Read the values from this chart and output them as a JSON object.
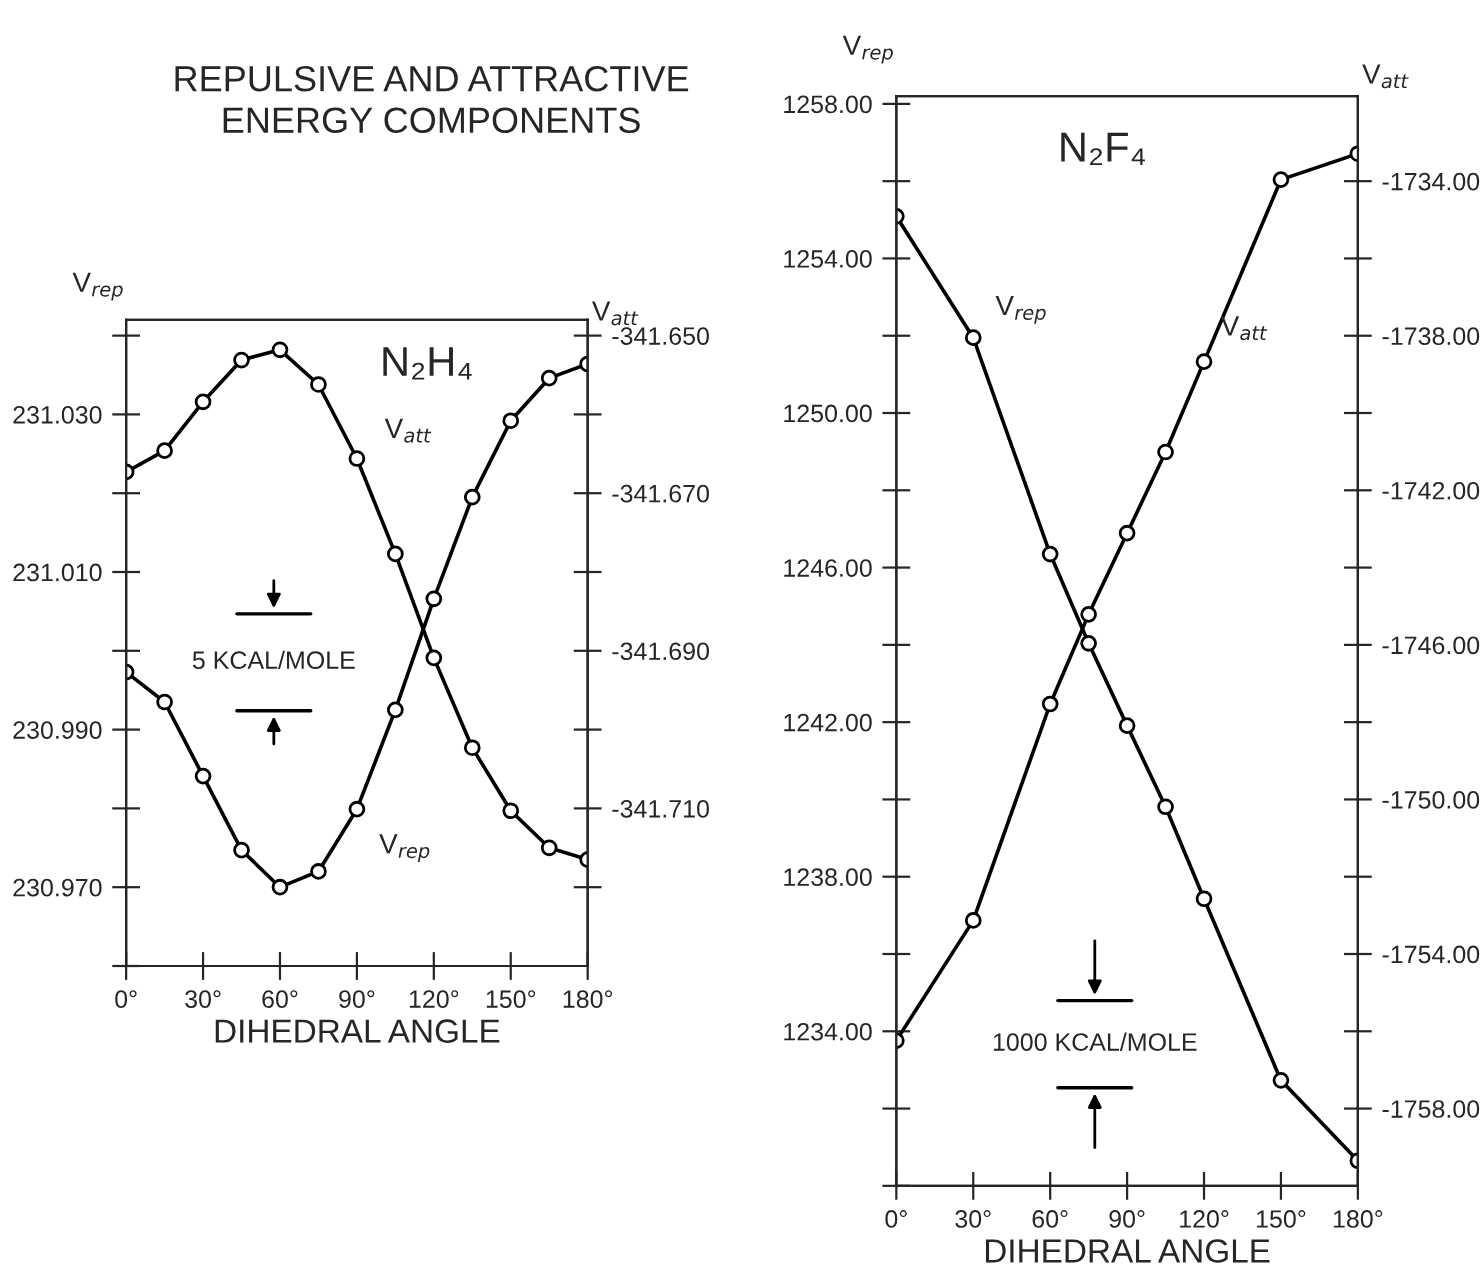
{
  "chart_data": [
    {
      "type": "line",
      "title": "REPULSIVE AND ATTRACTIVE\nENERGY COMPONENTS",
      "xlabel": "DIHEDRAL ANGLE",
      "ylabel": "V$_{rep}$",
      "y2label": "V$_{att}$",
      "annotations": [
        "N₂H₄",
        "5 KCAL/MOLE"
      ],
      "x": [
        0,
        15,
        30,
        45,
        60,
        75,
        90,
        105,
        120,
        135,
        150,
        165,
        180
      ],
      "xlim": [
        0,
        180
      ],
      "xticks": [
        {
          "value": 0,
          "label": "0°"
        },
        {
          "value": 30,
          "label": "30°"
        },
        {
          "value": 60,
          "label": "60°"
        },
        {
          "value": 90,
          "label": "90°"
        },
        {
          "value": 120,
          "label": "120°"
        },
        {
          "value": 150,
          "label": "150°"
        },
        {
          "value": 180,
          "label": "180°"
        }
      ],
      "ylim": [
        230.96,
        231.042
      ],
      "yticks": [
        {
          "value": 230.96,
          "label": null
        },
        {
          "value": 230.97,
          "label": "230.970"
        },
        {
          "value": 230.98,
          "label": null
        },
        {
          "value": 230.99,
          "label": "230.990"
        },
        {
          "value": 231.0,
          "label": null
        },
        {
          "value": 231.01,
          "label": "231.010"
        },
        {
          "value": 231.02,
          "label": null
        },
        {
          "value": 231.03,
          "label": "231.030"
        },
        {
          "value": 231.04,
          "label": null
        }
      ],
      "y2lim": [
        -341.73,
        -341.648
      ],
      "y2ticks": [
        {
          "value": -341.65,
          "label": "-341.650"
        },
        {
          "value": -341.66,
          "label": null
        },
        {
          "value": -341.67,
          "label": "-341.670"
        },
        {
          "value": -341.68,
          "label": null
        },
        {
          "value": -341.69,
          "label": "-341.690"
        },
        {
          "value": -341.7,
          "label": null
        },
        {
          "value": -341.71,
          "label": "-341.710"
        },
        {
          "value": -341.72,
          "label": null
        }
      ],
      "marker": "circle",
      "line_style": "solid",
      "grid": false,
      "legend": false,
      "series": [
        {
          "name": "V$_{rep}$",
          "color": "#000000",
          "values": [
            230.9973,
            230.9935,
            230.9841,
            230.9747,
            230.97,
            230.972,
            230.9799,
            230.9925,
            231.0066,
            231.0195,
            231.0292,
            231.0346,
            231.0364
          ]
        },
        {
          "name": "V$_{att}$",
          "color": "#000000",
          "axis": "y2",
          "values": [
            -341.6673,
            -341.6646,
            -341.6584,
            -341.6531,
            -341.6518,
            -341.6562,
            -341.6656,
            -341.6777,
            -341.6909,
            -341.7023,
            -341.7103,
            -341.715,
            -341.7165
          ]
        }
      ]
    },
    {
      "type": "line",
      "xlabel": "DIHEDRAL ANGLE",
      "ylabel": "V$_{rep}$",
      "y2label": "V$_{att}$",
      "annotations": [
        "N₂F₄",
        "1000 KCAL/MOLE"
      ],
      "x": [
        0,
        30,
        60,
        75,
        90,
        105,
        120,
        150,
        180
      ],
      "xlim": [
        0,
        180
      ],
      "xticks": [
        {
          "value": 0,
          "label": "0°"
        },
        {
          "value": 30,
          "label": "30°"
        },
        {
          "value": 60,
          "label": "60°"
        },
        {
          "value": 90,
          "label": "90°"
        },
        {
          "value": 120,
          "label": "120°"
        },
        {
          "value": 150,
          "label": "150°"
        },
        {
          "value": 180,
          "label": "180°"
        }
      ],
      "ylim": [
        1230,
        1258.2
      ],
      "yticks": [
        {
          "value": 1230,
          "label": null
        },
        {
          "value": 1232,
          "label": null
        },
        {
          "value": 1234,
          "label": "1234.00"
        },
        {
          "value": 1236,
          "label": null
        },
        {
          "value": 1238,
          "label": "1238.00"
        },
        {
          "value": 1240,
          "label": null
        },
        {
          "value": 1242,
          "label": "1242.00"
        },
        {
          "value": 1244,
          "label": null
        },
        {
          "value": 1246,
          "label": "1246.00"
        },
        {
          "value": 1248,
          "label": null
        },
        {
          "value": 1250,
          "label": "1250.00"
        },
        {
          "value": 1252,
          "label": null
        },
        {
          "value": 1254,
          "label": "1254.00"
        },
        {
          "value": 1256,
          "label": null
        },
        {
          "value": 1258,
          "label": "1258.00"
        }
      ],
      "y2lim": [
        -1760,
        -1731.8
      ],
      "y2ticks": [
        {
          "value": -1734,
          "label": "-1734.00"
        },
        {
          "value": -1736,
          "label": null
        },
        {
          "value": -1738,
          "label": "-1738.00"
        },
        {
          "value": -1740,
          "label": null
        },
        {
          "value": -1742,
          "label": "-1742.00"
        },
        {
          "value": -1744,
          "label": null
        },
        {
          "value": -1746,
          "label": "-1746.00"
        },
        {
          "value": -1748,
          "label": null
        },
        {
          "value": -1750,
          "label": "-1750.00"
        },
        {
          "value": -1752,
          "label": null
        },
        {
          "value": -1754,
          "label": "-1754.00"
        },
        {
          "value": -1756,
          "label": null
        },
        {
          "value": -1758,
          "label": "-1758.00"
        }
      ],
      "marker": "circle",
      "line_style": "solid",
      "grid": false,
      "legend": false,
      "series": [
        {
          "name": "V$_{rep}$",
          "color": "#000000",
          "values": [
            1255.09,
            1251.95,
            1246.35,
            1244.04,
            1241.91,
            1239.81,
            1237.43,
            1232.73,
            1230.65
          ]
        },
        {
          "name": "V$_{att}$",
          "color": "#000000",
          "axis": "y2",
          "values": [
            -1756.24,
            -1753.13,
            -1747.53,
            -1745.21,
            -1743.11,
            -1741.01,
            -1738.67,
            -1733.96,
            -1733.29
          ]
        }
      ]
    }
  ]
}
